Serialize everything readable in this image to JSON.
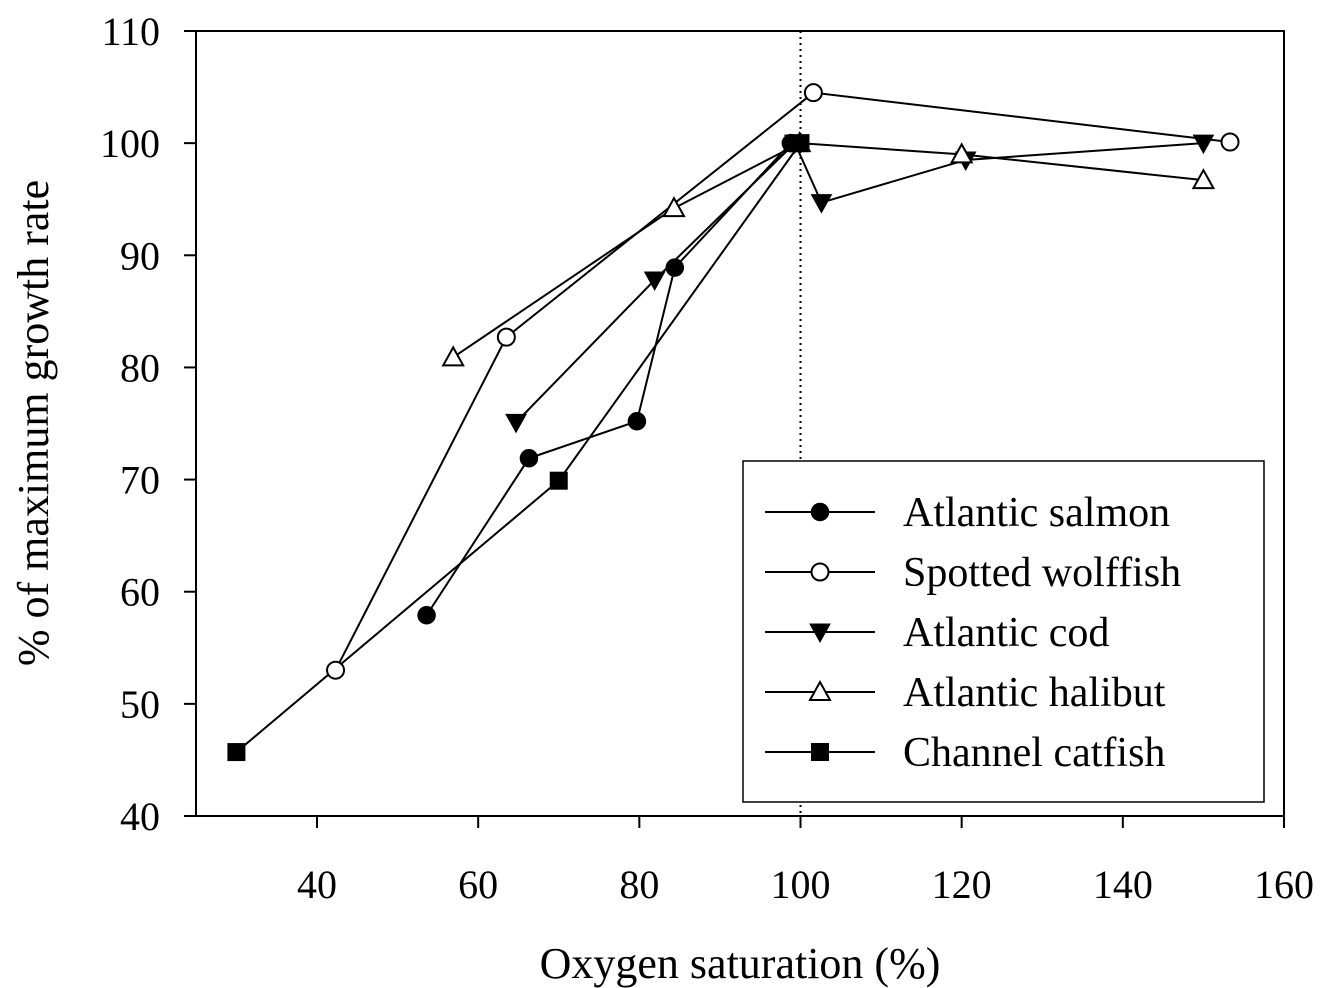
{
  "chart_data": {
    "type": "line",
    "xlabel": "Oxygen saturation (%)",
    "ylabel": "% of maximum growth rate",
    "xlim": [
      20,
      155
    ],
    "ylim": [
      40,
      110
    ],
    "xticks": [
      40,
      60,
      80,
      100,
      120,
      140,
      160
    ],
    "yticks": [
      40,
      50,
      60,
      70,
      80,
      90,
      100,
      110
    ],
    "reference_line": {
      "x": 100,
      "style": "dotted"
    },
    "legend": {
      "position": "bottom-right"
    },
    "series": [
      {
        "name": "Atlantic salmon",
        "marker": "filled-circle",
        "x": [
          53.6,
          66.3,
          79.7,
          84.4,
          98.8
        ],
        "y": [
          57.9,
          71.9,
          75.2,
          88.9,
          100.0
        ]
      },
      {
        "name": "Spotted wolffish",
        "marker": "open-circle",
        "x": [
          42.3,
          63.5,
          101.6,
          153.3
        ],
        "y": [
          53.0,
          82.7,
          104.5,
          100.1
        ]
      },
      {
        "name": "Atlantic cod",
        "marker": "filled-triangle-down",
        "x": [
          64.7,
          81.9,
          99.3,
          102.6,
          120.5,
          150.0
        ],
        "y": [
          75.1,
          87.8,
          100.0,
          94.7,
          98.5,
          100.0
        ]
      },
      {
        "name": "Atlantic halibut",
        "marker": "open-triangle-up",
        "x": [
          56.9,
          84.3,
          99.9,
          120.0,
          150.0
        ],
        "y": [
          80.9,
          94.2,
          100.0,
          99.0,
          96.7
        ]
      },
      {
        "name": "Channel catfish",
        "marker": "filled-square",
        "x": [
          30.0,
          70.0,
          100.0
        ],
        "y": [
          45.7,
          69.9,
          100.0
        ]
      }
    ]
  }
}
